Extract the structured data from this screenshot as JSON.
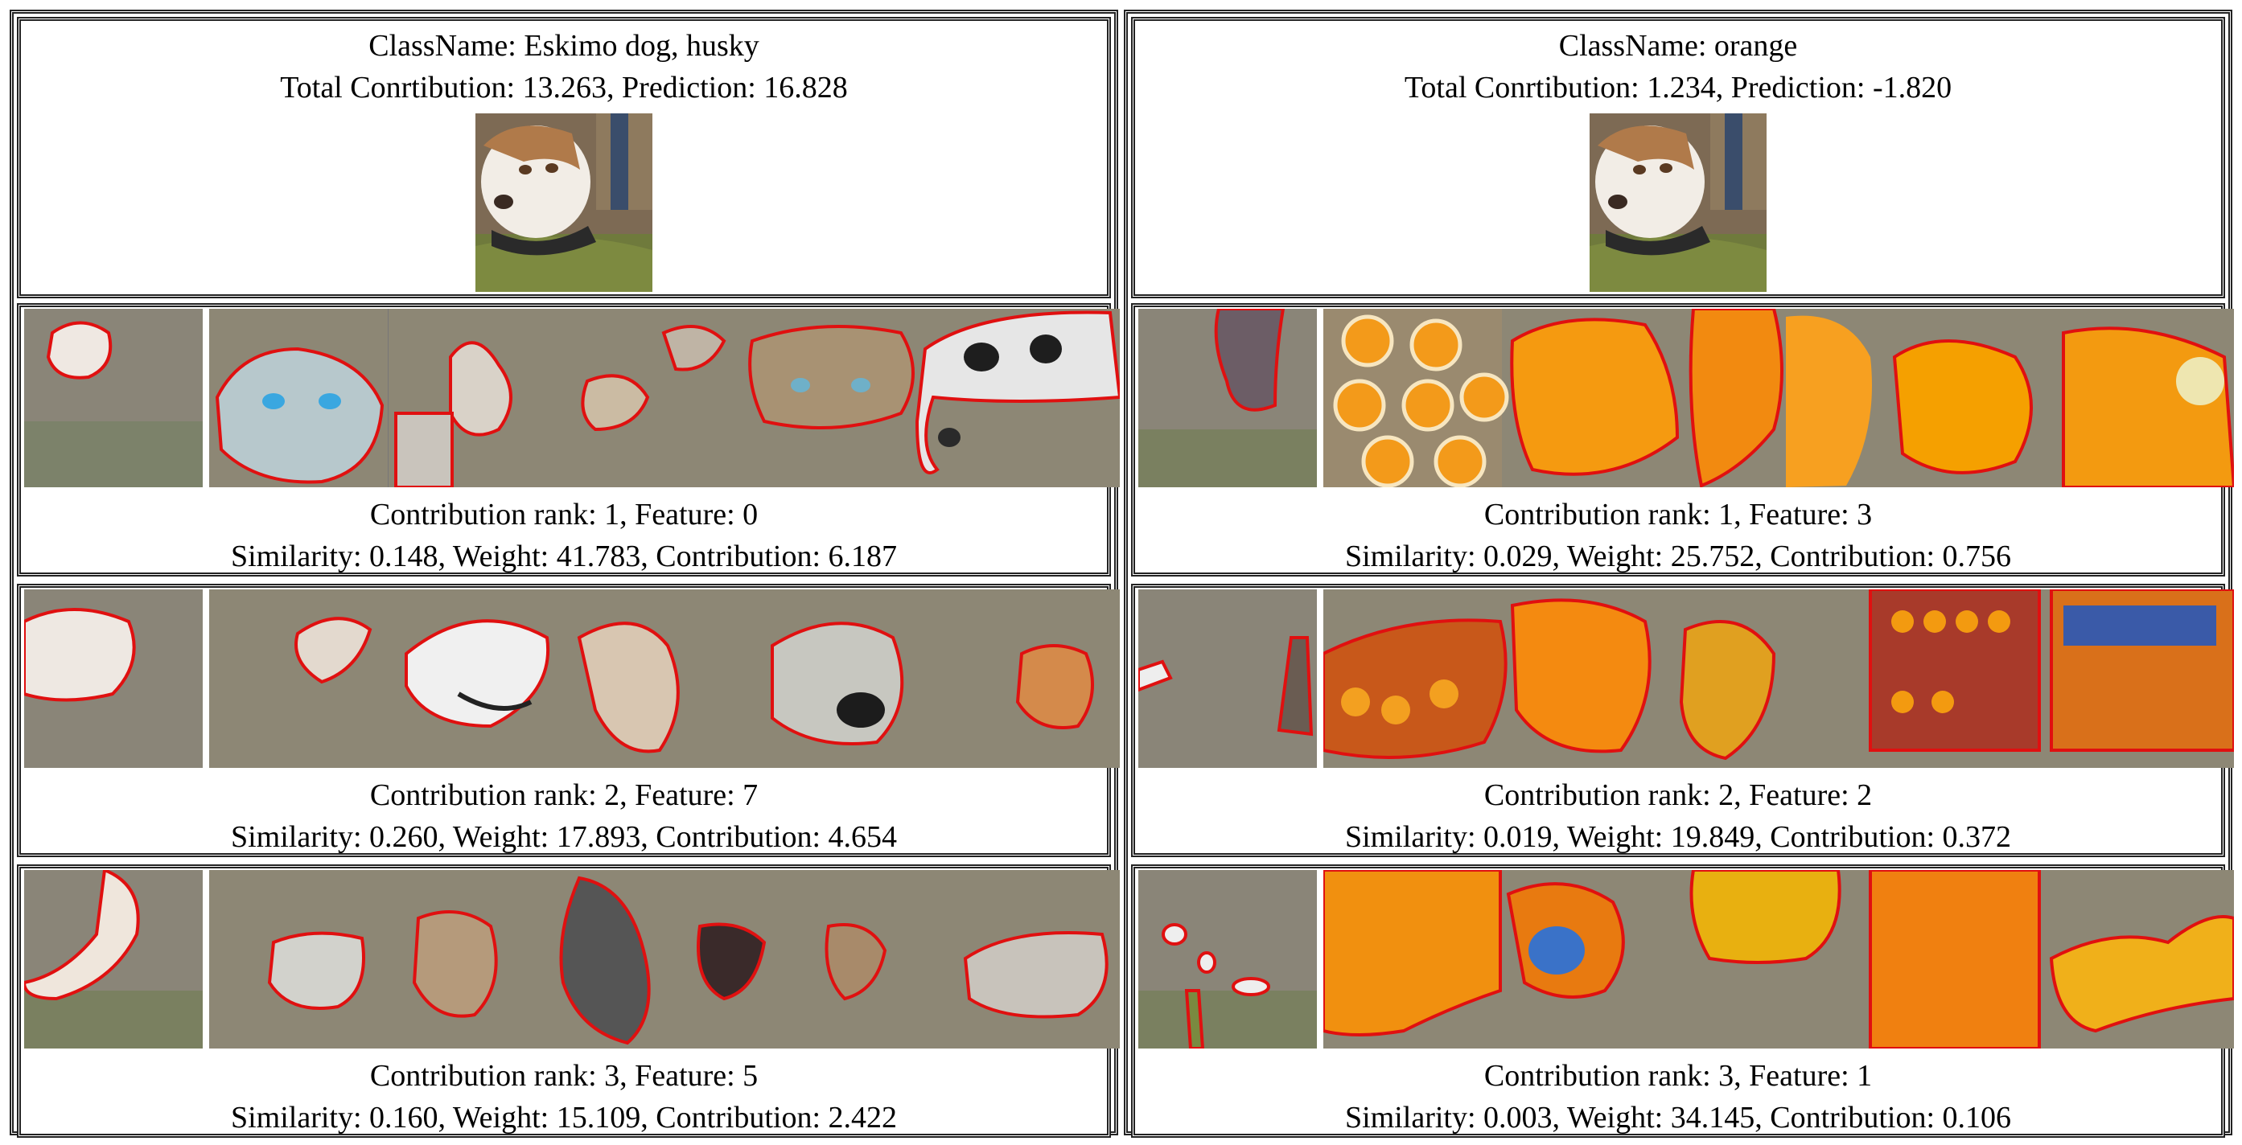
{
  "panels": [
    {
      "class_name_line": "ClassName: Eskimo dog, husky",
      "contribution_line": "Total Conrtibution: 13.263, Prediction: 16.828",
      "query_image": "husky-dog-photo",
      "features": [
        {
          "rank_line": "Contribution rank: 1, Feature: 0",
          "stats_line": "Similarity: 0.148, Weight: 41.783, Contribution: 6.187",
          "examples": [
            "husky-face-highlight",
            "husky-blue-eyes",
            "husky-puppies-mosaic",
            "husky-eye-closeup",
            "husky-face-closeup",
            "husky-puppies-group"
          ]
        },
        {
          "rank_line": "Contribution rank: 2, Feature: 7",
          "stats_line": "Similarity: 0.260, Weight: 17.893, Contribution: 4.654",
          "examples": [
            "husky-snout-highlight",
            "dog-howling",
            "husky-open-mouth",
            "dog-head-closeup",
            "husky-nose-closeup",
            "dog-smiling-face"
          ]
        },
        {
          "rank_line": "Contribution rank: 3, Feature: 5",
          "stats_line": "Similarity: 0.160, Weight: 15.109, Contribution: 2.422",
          "examples": [
            "husky-body-highlight",
            "dog-show-husky",
            "dog-in-crate",
            "husky-lying-down",
            "sled-dogs-running",
            "husky-lying-ground"
          ]
        }
      ]
    },
    {
      "class_name_line": "ClassName: orange",
      "contribution_line": "Total Conrtibution: 1.234, Prediction: -1.820",
      "query_image": "husky-dog-photo",
      "features": [
        {
          "rank_line": "Contribution rank: 1, Feature: 3",
          "stats_line": "Similarity: 0.029, Weight: 25.752, Contribution: 0.756",
          "examples": [
            "husky-background-highlight",
            "orange-slices-grid",
            "orange-half-closeup",
            "orange-slice-closeup",
            "orange-wedges",
            "citrus-slices"
          ]
        },
        {
          "rank_line": "Contribution rank: 2, Feature: 2",
          "stats_line": "Similarity: 0.019, Weight: 19.849, Contribution: 0.372",
          "examples": [
            "husky-edge-highlight",
            "fruit-market-stall",
            "orange-pile",
            "fruit-stand",
            "fruit-shelves",
            "oranges-crate"
          ]
        },
        {
          "rank_line": "Contribution rank: 3, Feature: 1",
          "stats_line": "Similarity: 0.003, Weight: 34.145, Contribution: 0.106",
          "examples": [
            "husky-grass-highlight",
            "orange-peel-closeup",
            "orange-sticker",
            "yellow-citrus-pile",
            "oranges-pile",
            "orange-tree-branch"
          ]
        }
      ]
    }
  ],
  "colors": {
    "highlight_outline": "#e01010",
    "dimmed_overlay": "#8a8a78",
    "border": "#222222"
  }
}
